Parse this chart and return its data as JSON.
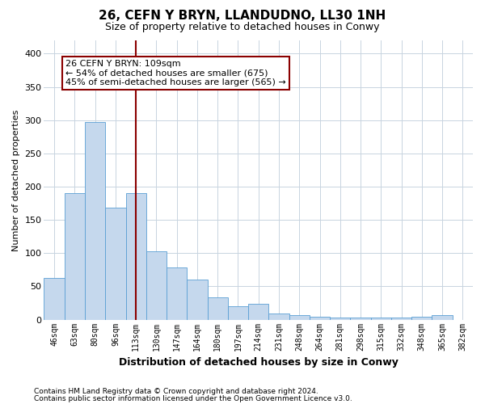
{
  "title": "26, CEFN Y BRYN, LLANDUDNO, LL30 1NH",
  "subtitle": "Size of property relative to detached houses in Conwy",
  "xlabel": "Distribution of detached houses by size in Conwy",
  "ylabel": "Number of detached properties",
  "categories": [
    "46sqm",
    "63sqm",
    "80sqm",
    "96sqm",
    "113sqm",
    "130sqm",
    "147sqm",
    "164sqm",
    "180sqm",
    "197sqm",
    "214sqm",
    "231sqm",
    "248sqm",
    "264sqm",
    "281sqm",
    "298sqm",
    "315sqm",
    "332sqm",
    "348sqm",
    "365sqm",
    "382sqm"
  ],
  "values": [
    63,
    190,
    297,
    168,
    190,
    103,
    78,
    60,
    33,
    20,
    24,
    9,
    7,
    5,
    3,
    3,
    3,
    3,
    4,
    7,
    0
  ],
  "bar_color": "#c5d8ed",
  "bar_edge_color": "#5a9fd4",
  "marker_index": 4,
  "marker_color": "#8b0000",
  "annotation_line1": "26 CEFN Y BRYN: 109sqm",
  "annotation_line2": "← 54% of detached houses are smaller (675)",
  "annotation_line3": "45% of semi-detached houses are larger (565) →",
  "annotation_box_color": "#ffffff",
  "annotation_box_edge": "#8b0000",
  "ylim": [
    0,
    420
  ],
  "yticks": [
    0,
    50,
    100,
    150,
    200,
    250,
    300,
    350,
    400
  ],
  "footer1": "Contains HM Land Registry data © Crown copyright and database right 2024.",
  "footer2": "Contains public sector information licensed under the Open Government Licence v3.0.",
  "bg_color": "#ffffff",
  "grid_color": "#c8d4e0",
  "title_fontsize": 11,
  "subtitle_fontsize": 9,
  "ylabel_fontsize": 8,
  "xlabel_fontsize": 9,
  "tick_fontsize": 8,
  "xtick_fontsize": 7,
  "ann_fontsize": 8,
  "footer_fontsize": 6.5
}
